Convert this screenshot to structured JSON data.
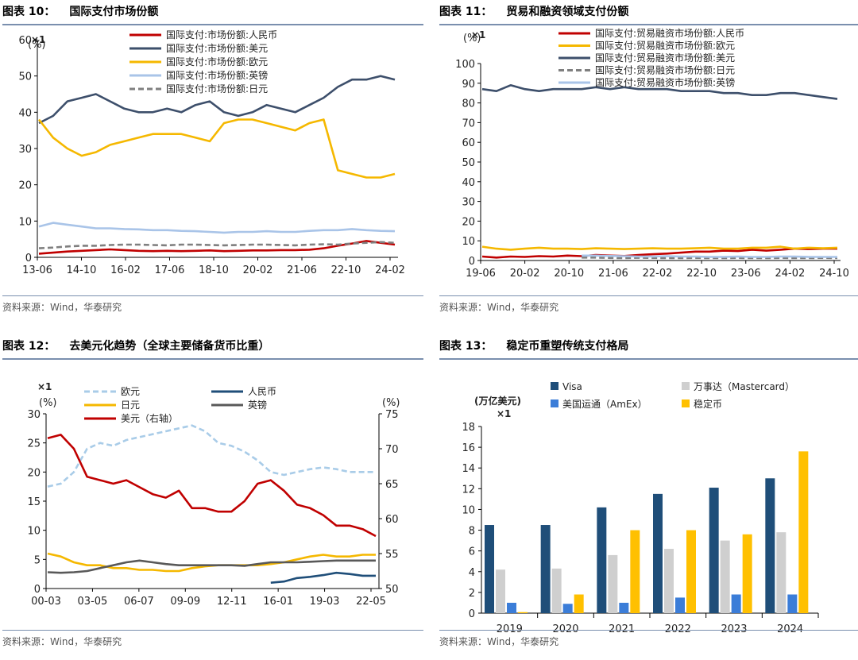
{
  "source_note": "资料来源：Wind，华泰研究",
  "charts": [
    {
      "fig_no": "图表 10：",
      "title": "国际支付市场份额",
      "unit": "(%)",
      "mult": "×1",
      "chart_data": {
        "type": "line",
        "x_ticks": [
          "13-06",
          "14-10",
          "16-02",
          "17-06",
          "18-10",
          "20-02",
          "21-06",
          "22-10",
          "24-02"
        ],
        "ylim": [
          0,
          60
        ],
        "y_ticks": [
          0,
          10,
          20,
          30,
          40,
          50,
          60
        ],
        "series": [
          {
            "name": "国际支付:市场份额:人民币",
            "color": "#c00000",
            "values": [
              1.0,
              1.3,
              1.6,
              1.8,
              2.0,
              2.2,
              2.0,
              1.8,
              1.7,
              1.8,
              1.7,
              1.8,
              1.9,
              1.7,
              1.8,
              1.9,
              1.9,
              2.0,
              2.0,
              2.1,
              2.5,
              3.2,
              3.8,
              4.5,
              4.0,
              3.5
            ]
          },
          {
            "name": "国际支付:市场份额:美元",
            "color": "#3d4f6b",
            "values": [
              37,
              39,
              43,
              44,
              45,
              43,
              41,
              40,
              40,
              41,
              40,
              42,
              43,
              40,
              39,
              40,
              42,
              41,
              40,
              42,
              44,
              47,
              49,
              49,
              50,
              49
            ]
          },
          {
            "name": "国际支付:市场份额:欧元",
            "color": "#f5b800",
            "values": [
              38,
              33,
              30,
              28,
              29,
              31,
              32,
              33,
              34,
              34,
              34,
              33,
              32,
              37,
              38,
              38,
              37,
              36,
              35,
              37,
              38,
              24,
              23,
              22,
              22,
              23
            ]
          },
          {
            "name": "国际支付:市场份额:英镑",
            "color": "#a9c4e8",
            "values": [
              8.5,
              9.5,
              9.0,
              8.5,
              8.0,
              8.0,
              7.8,
              7.7,
              7.5,
              7.5,
              7.3,
              7.2,
              7.0,
              6.8,
              7.0,
              7.0,
              7.2,
              7.0,
              7.0,
              7.3,
              7.5,
              7.5,
              7.8,
              7.5,
              7.3,
              7.2
            ]
          },
          {
            "name": "国际支付:市场份额:日元",
            "color": "#7f7f7f",
            "dash": true,
            "values": [
              2.5,
              2.7,
              3.0,
              3.2,
              3.2,
              3.4,
              3.5,
              3.5,
              3.4,
              3.3,
              3.5,
              3.5,
              3.4,
              3.3,
              3.4,
              3.5,
              3.5,
              3.4,
              3.3,
              3.5,
              3.6,
              3.5,
              3.8,
              4.0,
              4.2,
              4.0
            ]
          }
        ]
      }
    },
    {
      "fig_no": "图表 11：",
      "title": "贸易和融资领域支付份额",
      "unit": "(%)",
      "mult": "×1",
      "chart_data": {
        "type": "line",
        "x_ticks": [
          "19-06",
          "20-02",
          "20-10",
          "21-06",
          "22-02",
          "22-10",
          "23-06",
          "24-02",
          "24-10"
        ],
        "ylim": [
          0,
          100
        ],
        "y_ticks": [
          0,
          10,
          20,
          30,
          40,
          50,
          60,
          70,
          80,
          90,
          100
        ],
        "series": [
          {
            "name": "国际支付:贸易融资市场份额:人民币",
            "color": "#c00000",
            "values": [
              2.0,
              1.5,
              2.0,
              1.8,
              2.2,
              2.0,
              2.5,
              2.2,
              2.8,
              2.5,
              2.3,
              2.8,
              3.2,
              3.5,
              4.0,
              4.5,
              4.5,
              5.0,
              4.8,
              5.5,
              5.0,
              5.5,
              6.0,
              5.8,
              6.0,
              6.0
            ]
          },
          {
            "name": "国际支付:贸易融资市场份额:欧元",
            "color": "#f5b800",
            "values": [
              7.0,
              6.0,
              5.5,
              6.0,
              6.5,
              6.0,
              6.0,
              5.8,
              6.2,
              6.0,
              5.8,
              6.0,
              6.2,
              6.0,
              6.0,
              6.2,
              6.5,
              6.0,
              6.0,
              6.5,
              6.5,
              7.0,
              6.0,
              6.5,
              6.2,
              6.5
            ]
          },
          {
            "name": "国际支付:贸易融资市场份额:美元",
            "color": "#3d4f6b",
            "values": [
              87,
              86,
              89,
              87,
              86,
              87,
              87,
              87,
              88,
              87,
              88,
              87,
              87,
              87,
              86,
              86,
              86,
              85,
              85,
              84,
              84,
              85,
              85,
              84,
              83,
              82
            ]
          },
          {
            "name": "国际支付:贸易融资市场份额:日元",
            "color": "#7f7f7f",
            "dash": true,
            "values": [
              null,
              null,
              null,
              null,
              null,
              null,
              null,
              1.5,
              1.5,
              1.3,
              1.2,
              1.4,
              1.3,
              1.2,
              1.2,
              1.3,
              1.2,
              1.2,
              1.3,
              1.2,
              1.2,
              1.3,
              1.2,
              1.2,
              1.3,
              1.2
            ]
          },
          {
            "name": "国际支付:贸易融资市场份额:英镑",
            "color": "#a9c4e8",
            "values": [
              null,
              null,
              null,
              null,
              null,
              null,
              null,
              2.5,
              2.5,
              2.3,
              2.2,
              2.0,
              2.0,
              2.2,
              2.0,
              2.0,
              1.8,
              1.8,
              2.0,
              1.8,
              1.8,
              2.0,
              2.0,
              1.8,
              1.8,
              1.8
            ]
          }
        ]
      }
    },
    {
      "fig_no": "图表 12：",
      "title": "去美元化趋势（全球主要储备货币比重）",
      "unit": "(%)",
      "mult": "×1",
      "right_unit": "(%)",
      "chart_data": {
        "type": "line",
        "x_ticks": [
          "00-03",
          "03-05",
          "06-07",
          "09-09",
          "12-11",
          "16-01",
          "19-03",
          "22-05"
        ],
        "ylim": [
          0,
          30
        ],
        "y_ticks": [
          0,
          5,
          10,
          15,
          20,
          25,
          30
        ],
        "ylim_right": [
          50,
          75
        ],
        "y_ticks_right": [
          50,
          55,
          60,
          65,
          70,
          75
        ],
        "series": [
          {
            "name": "欧元",
            "color": "#a9cce8",
            "dash": true,
            "axis": "left",
            "values": [
              17.5,
              18.0,
              20.0,
              24.0,
              25.0,
              24.5,
              25.5,
              26.0,
              26.5,
              27.0,
              27.5,
              28.0,
              27.0,
              25.0,
              24.5,
              23.5,
              22.0,
              20.0,
              19.5,
              20.0,
              20.5,
              20.8,
              20.5,
              20.0,
              20.0,
              20.0
            ]
          },
          {
            "name": "人民币",
            "color": "#1f4e79",
            "axis": "left",
            "values": [
              null,
              null,
              null,
              null,
              null,
              null,
              null,
              null,
              null,
              null,
              null,
              null,
              null,
              null,
              null,
              null,
              null,
              1.0,
              1.2,
              1.8,
              2.0,
              2.3,
              2.7,
              2.5,
              2.2,
              2.2
            ]
          },
          {
            "name": "日元",
            "color": "#f5b800",
            "axis": "left",
            "values": [
              6.0,
              5.5,
              4.5,
              4.0,
              4.0,
              3.5,
              3.5,
              3.2,
              3.2,
              3.0,
              3.0,
              3.5,
              3.8,
              4.0,
              4.0,
              4.0,
              4.0,
              4.2,
              4.5,
              5.0,
              5.5,
              5.8,
              5.5,
              5.5,
              5.8,
              5.8
            ]
          },
          {
            "name": "英镑",
            "color": "#595959",
            "axis": "left",
            "values": [
              2.8,
              2.7,
              2.8,
              3.0,
              3.5,
              4.0,
              4.5,
              4.8,
              4.5,
              4.2,
              4.0,
              4.0,
              4.0,
              4.0,
              4.0,
              3.9,
              4.2,
              4.5,
              4.5,
              4.5,
              4.6,
              4.7,
              4.8,
              4.8,
              4.8,
              4.8
            ]
          },
          {
            "name": "美元（右轴）",
            "color": "#c00000",
            "axis": "right",
            "values": [
              71.5,
              72.0,
              70.0,
              66.0,
              65.5,
              65.0,
              65.5,
              64.5,
              63.5,
              63.0,
              64.0,
              61.5,
              61.5,
              61.0,
              61.0,
              62.5,
              65.0,
              65.5,
              64.0,
              62.0,
              61.5,
              60.5,
              59.0,
              59.0,
              58.5,
              57.5
            ]
          }
        ]
      }
    },
    {
      "fig_no": "图表 13：",
      "title": "稳定币重塑传统支付格局",
      "unit": "(万亿美元)",
      "mult": "×1",
      "chart_data": {
        "type": "bar",
        "categories": [
          "2019",
          "2020",
          "2021",
          "2022",
          "2023",
          "2024"
        ],
        "ylim": [
          0,
          18
        ],
        "y_ticks": [
          0,
          2,
          4,
          6,
          8,
          10,
          12,
          14,
          16,
          18
        ],
        "series": [
          {
            "name": "Visa",
            "color": "#1f4e79",
            "values": [
              8.5,
              8.5,
              10.2,
              11.5,
              12.1,
              13.0
            ]
          },
          {
            "name": "美国运通（AmEx）",
            "color": "#3b7dd8",
            "values": [
              1.0,
              0.9,
              1.0,
              1.5,
              1.8,
              1.8
            ]
          },
          {
            "name": "万事达（Mastercard）",
            "color": "#cfcfcf",
            "values": [
              4.2,
              4.3,
              5.6,
              6.2,
              7.0,
              7.8
            ]
          },
          {
            "name": "稳定币",
            "color": "#ffc000",
            "values": [
              0.1,
              1.8,
              8.0,
              8.0,
              7.6,
              15.6
            ]
          }
        ],
        "bar_order": [
          "Visa",
          "万事达（Mastercard）",
          "美国运通（AmEx）",
          "稳定币"
        ],
        "legend_order": [
          "Visa",
          "万事达（Mastercard）",
          "美国运通（AmEx）",
          "稳定币"
        ]
      }
    }
  ]
}
